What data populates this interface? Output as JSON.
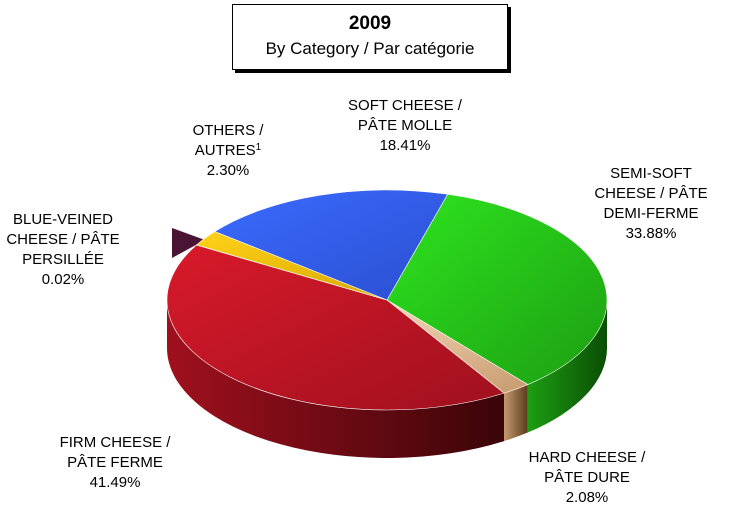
{
  "chart_data": {
    "type": "pie",
    "title": "2009",
    "subtitle": "By Category / Par catégorie",
    "slices": [
      {
        "key": "semi",
        "lines": [
          "SEMI-SOFT",
          "CHEESE / PÂTE",
          "DEMI-FERME"
        ],
        "value_label": "33.88%",
        "value": 33.88,
        "colors": [
          "#1d9e12",
          "#2ee51f",
          "#0a4d05"
        ]
      },
      {
        "key": "hard",
        "lines": [
          "HARD CHEESE /",
          "PÂTE DURE"
        ],
        "value_label": "2.08%",
        "value": 2.08,
        "colors": [
          "#c79a6e",
          "#f3d6b8",
          "#5a3b1f"
        ]
      },
      {
        "key": "firm",
        "lines": [
          "FIRM CHEESE /",
          "PÂTE FERME"
        ],
        "value_label": "41.49%",
        "value": 41.49,
        "colors": [
          "#a0101e",
          "#d81a2a",
          "#3a0508"
        ]
      },
      {
        "key": "blue",
        "lines": [
          "BLUE-VEINED",
          "CHEESE / PÂTE",
          "PERSILLÉE"
        ],
        "value_label": "0.02%",
        "value": 0.02,
        "colors": [
          "#4a1535",
          "#6b2550",
          "#240818"
        ]
      },
      {
        "key": "others",
        "lines": [
          "OTHERS /",
          "AUTRES"
        ],
        "sup": "1",
        "value_label": "2.30%",
        "value": 2.3,
        "colors": [
          "#d8a800",
          "#ffd21a",
          "#6a5000"
        ]
      },
      {
        "key": "soft",
        "lines": [
          "SOFT CHEESE /",
          "PÂTE MOLLE"
        ],
        "value_label": "18.41%",
        "value": 18.41,
        "colors": [
          "#2a4fd0",
          "#3b6bff",
          "#0c1a60"
        ]
      }
    ]
  }
}
